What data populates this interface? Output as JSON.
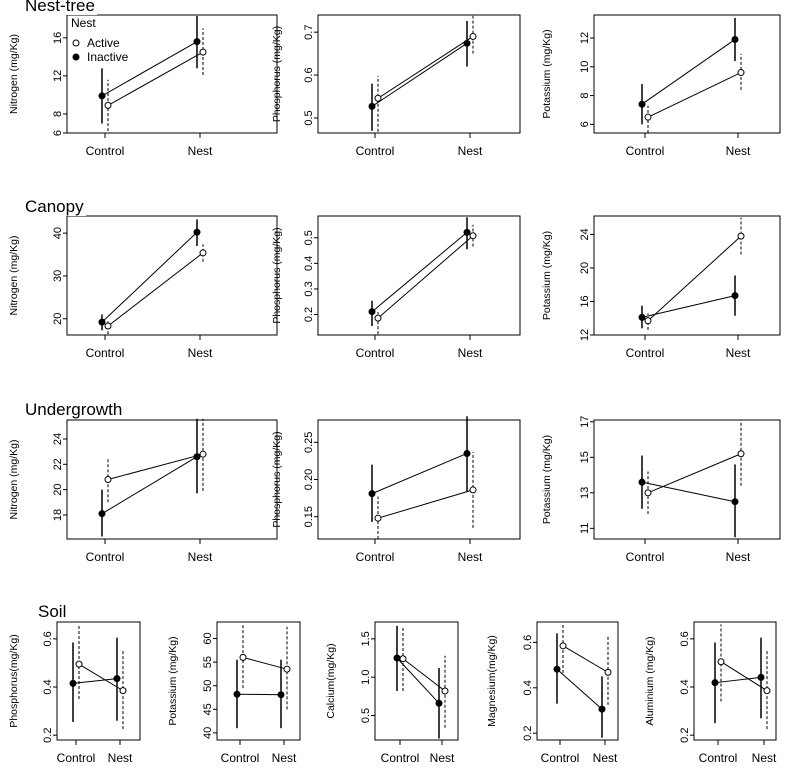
{
  "figure": {
    "legend": {
      "title": "Nest",
      "active": "Active",
      "inactive": "Inactive"
    },
    "sections": [
      {
        "title": "Nest-tree"
      },
      {
        "title": "Canopy"
      },
      {
        "title": "Undergrowth"
      },
      {
        "title": "Soil"
      }
    ]
  },
  "chart_data": [
    {
      "type": "line",
      "section": "Nest-tree",
      "ylabel": "Nitrogen (mg/Kg)",
      "categories": [
        "Control",
        "Nest"
      ],
      "ylim": [
        6,
        18.4
      ],
      "yticks": [
        6,
        8,
        12,
        16
      ],
      "series": [
        {
          "name": "Active",
          "values": [
            8.9,
            14.5
          ],
          "lower": [
            6.2,
            12.1
          ],
          "upper": [
            11.6,
            17.0
          ]
        },
        {
          "name": "Inactive",
          "values": [
            9.9,
            15.6
          ],
          "lower": [
            7.0,
            12.8
          ],
          "upper": [
            12.8,
            18.3
          ]
        }
      ]
    },
    {
      "type": "line",
      "section": "Nest-tree",
      "ylabel": "Phosphorus (mg/Kg)",
      "categories": [
        "Control",
        "Nest"
      ],
      "ylim": [
        0.465,
        0.74
      ],
      "yticks": [
        0.5,
        0.6,
        0.7
      ],
      "series": [
        {
          "name": "Active",
          "values": [
            0.546,
            0.69
          ],
          "lower": [
            0.468,
            0.65
          ],
          "upper": [
            0.598,
            0.738
          ]
        },
        {
          "name": "Inactive",
          "values": [
            0.527,
            0.674
          ],
          "lower": [
            0.47,
            0.62
          ],
          "upper": [
            0.58,
            0.726
          ]
        }
      ]
    },
    {
      "type": "line",
      "section": "Nest-tree",
      "ylabel": "Potassium (mg/Kg)",
      "categories": [
        "Control",
        "Nest"
      ],
      "ylim": [
        5.4,
        13.6
      ],
      "yticks": [
        6,
        8,
        10,
        12
      ],
      "series": [
        {
          "name": "Active",
          "values": [
            6.5,
            9.6
          ],
          "lower": [
            5.4,
            8.4
          ],
          "upper": [
            7.3,
            10.9
          ]
        },
        {
          "name": "Inactive",
          "values": [
            7.4,
            11.9
          ],
          "lower": [
            6.0,
            10.4
          ],
          "upper": [
            8.8,
            13.4
          ]
        }
      ]
    },
    {
      "type": "line",
      "section": "Canopy",
      "ylabel": "Nitrogen (mg/Kg)",
      "categories": [
        "Control",
        "Nest"
      ],
      "ylim": [
        16.2,
        44
      ],
      "yticks": [
        20,
        30,
        40
      ],
      "series": [
        {
          "name": "Active",
          "values": [
            18.3,
            35.4
          ],
          "lower": [
            16.4,
            33.3
          ],
          "upper": [
            19.8,
            37.4
          ]
        },
        {
          "name": "Inactive",
          "values": [
            19.2,
            40.2
          ],
          "lower": [
            17.3,
            37.0
          ],
          "upper": [
            21.0,
            43.2
          ]
        }
      ]
    },
    {
      "type": "line",
      "section": "Canopy",
      "ylabel": "Phosphorus (mg/Kg)",
      "categories": [
        "Control",
        "Nest"
      ],
      "ylim": [
        0.12,
        0.585
      ],
      "yticks": [
        0.2,
        0.3,
        0.4,
        0.5
      ],
      "series": [
        {
          "name": "Active",
          "values": [
            0.186,
            0.508
          ],
          "lower": [
            0.123,
            0.466
          ],
          "upper": [
            0.21,
            0.551
          ]
        },
        {
          "name": "Inactive",
          "values": [
            0.211,
            0.521
          ],
          "lower": [
            0.155,
            0.455
          ],
          "upper": [
            0.254,
            0.58
          ]
        }
      ]
    },
    {
      "type": "line",
      "section": "Canopy",
      "ylabel": "Potassium (mg/Kg)",
      "categories": [
        "Control",
        "Nest"
      ],
      "ylim": [
        12,
        26.2
      ],
      "yticks": [
        12,
        16,
        20,
        24
      ],
      "series": [
        {
          "name": "Active",
          "values": [
            13.7,
            23.8
          ],
          "lower": [
            12.6,
            21.6
          ],
          "upper": [
            14.6,
            26.0
          ]
        },
        {
          "name": "Inactive",
          "values": [
            14.1,
            16.7
          ],
          "lower": [
            12.8,
            14.3
          ],
          "upper": [
            15.5,
            19.1
          ]
        }
      ]
    },
    {
      "type": "line",
      "section": "Undergrowth",
      "ylabel": "Nitrogen (mg/Kg)",
      "categories": [
        "Control",
        "Nest"
      ],
      "ylim": [
        16.1,
        25.5
      ],
      "yticks": [
        18,
        20,
        22,
        24
      ],
      "series": [
        {
          "name": "Active",
          "values": [
            20.8,
            22.8
          ],
          "lower": [
            19.0,
            19.9
          ],
          "upper": [
            22.5,
            25.6
          ]
        },
        {
          "name": "Inactive",
          "values": [
            18.1,
            22.6
          ],
          "lower": [
            16.3,
            19.7
          ],
          "upper": [
            20.0,
            25.6
          ]
        }
      ]
    },
    {
      "type": "line",
      "section": "Undergrowth",
      "ylabel": "Phosphorus (mg/Kg)",
      "categories": [
        "Control",
        "Nest"
      ],
      "ylim": [
        0.12,
        0.28
      ],
      "yticks": [
        0.15,
        0.2,
        0.25
      ],
      "series": [
        {
          "name": "Active",
          "values": [
            0.148,
            0.186
          ],
          "lower": [
            0.12,
            0.135
          ],
          "upper": [
            0.177,
            0.237
          ]
        },
        {
          "name": "Inactive",
          "values": [
            0.181,
            0.235
          ],
          "lower": [
            0.143,
            0.184
          ],
          "upper": [
            0.22,
            0.285
          ]
        }
      ]
    },
    {
      "type": "line",
      "section": "Undergrowth",
      "ylabel": "Potassium (mg/Kg)",
      "categories": [
        "Control",
        "Nest"
      ],
      "ylim": [
        10.4,
        17.1
      ],
      "yticks": [
        11,
        13,
        15,
        17
      ],
      "series": [
        {
          "name": "Active",
          "values": [
            13.0,
            15.2
          ],
          "lower": [
            11.8,
            13.4
          ],
          "upper": [
            14.2,
            17.0
          ]
        },
        {
          "name": "Inactive",
          "values": [
            13.6,
            12.5
          ],
          "lower": [
            12.1,
            10.5
          ],
          "upper": [
            15.1,
            14.6
          ]
        }
      ]
    },
    {
      "type": "line",
      "section": "Soil",
      "ylabel": "Phosphorus(mg/Kg)",
      "categories": [
        "Control",
        "Nest"
      ],
      "ylim": [
        0.18,
        0.67
      ],
      "yticks": [
        0.2,
        0.4,
        0.6
      ],
      "series": [
        {
          "name": "Active",
          "values": [
            0.495,
            0.385
          ],
          "lower": [
            0.35,
            0.225
          ],
          "upper": [
            0.655,
            0.55
          ]
        },
        {
          "name": "Inactive",
          "values": [
            0.415,
            0.435
          ],
          "lower": [
            0.255,
            0.26
          ],
          "upper": [
            0.585,
            0.605
          ]
        }
      ]
    },
    {
      "type": "line",
      "section": "Soil",
      "ylabel": "Potassium (mg/Kg)",
      "categories": [
        "Control",
        "Nest"
      ],
      "ylim": [
        38.5,
        63.5
      ],
      "yticks": [
        40,
        45,
        50,
        55,
        60
      ],
      "series": [
        {
          "name": "Active",
          "values": [
            56.0,
            53.5
          ],
          "lower": [
            49.5,
            45.0
          ],
          "upper": [
            63.2,
            62.5
          ]
        },
        {
          "name": "Inactive",
          "values": [
            48.2,
            48.1
          ],
          "lower": [
            41.0,
            41.0
          ],
          "upper": [
            55.5,
            55.5
          ]
        }
      ]
    },
    {
      "type": "line",
      "section": "Soil",
      "ylabel": "Calcium(mg/Kg)",
      "categories": [
        "Control",
        "Nest"
      ],
      "ylim": [
        0.18,
        1.72
      ],
      "yticks": [
        0.5,
        1.0,
        1.5
      ],
      "series": [
        {
          "name": "Active",
          "values": [
            1.24,
            0.82
          ],
          "lower": [
            0.82,
            0.34
          ],
          "upper": [
            1.67,
            1.28
          ]
        },
        {
          "name": "Inactive",
          "values": [
            1.25,
            0.66
          ],
          "lower": [
            0.82,
            0.2
          ],
          "upper": [
            1.67,
            1.12
          ]
        }
      ]
    },
    {
      "type": "line",
      "section": "Soil",
      "ylabel": "Magnesium(mg/Kg)",
      "categories": [
        "Control",
        "Nest"
      ],
      "ylim": [
        0.17,
        0.69
      ],
      "yticks": [
        0.2,
        0.4,
        0.6
      ],
      "series": [
        {
          "name": "Active",
          "values": [
            0.585,
            0.468
          ],
          "lower": [
            0.465,
            0.325
          ],
          "upper": [
            0.68,
            0.63
          ]
        },
        {
          "name": "Inactive",
          "values": [
            0.482,
            0.306
          ],
          "lower": [
            0.33,
            0.18
          ],
          "upper": [
            0.64,
            0.45
          ]
        }
      ]
    },
    {
      "type": "line",
      "section": "Soil",
      "ylabel": "Aluminium (mg/Kg)",
      "categories": [
        "Control",
        "Nest"
      ],
      "ylim": [
        0.18,
        0.67
      ],
      "yticks": [
        0.2,
        0.4,
        0.6
      ],
      "series": [
        {
          "name": "Active",
          "values": [
            0.505,
            0.385
          ],
          "lower": [
            0.34,
            0.225
          ],
          "upper": [
            0.66,
            0.55
          ]
        },
        {
          "name": "Inactive",
          "values": [
            0.418,
            0.44
          ],
          "lower": [
            0.25,
            0.27
          ],
          "upper": [
            0.585,
            0.605
          ]
        }
      ]
    }
  ]
}
